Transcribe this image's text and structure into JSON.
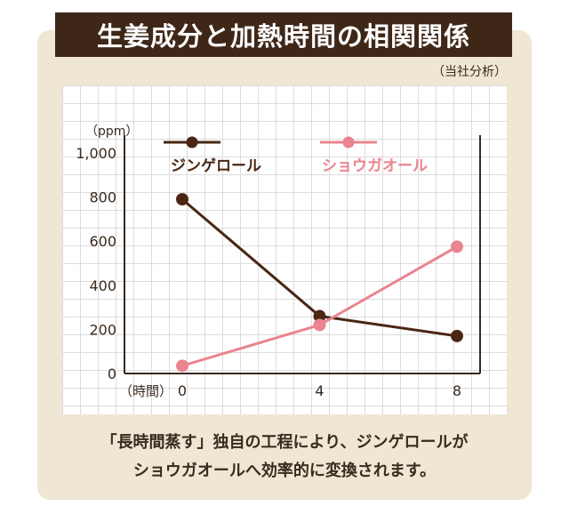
{
  "title": "生姜成分と加熱時間の相関関係",
  "source": "（当社分析）",
  "caption": {
    "line1": "「長時間蒸す」独自の工程により、ジンゲロールが",
    "line2": "ショウガオールへ効率的に変換されます。"
  },
  "colors": {
    "title_bg": "#3f2718",
    "panel_bg": "#efe6d3",
    "gingerol": "#4a2614",
    "shogaol": "#e98490"
  },
  "chart_data": {
    "type": "line",
    "title": "",
    "xlabel": "（時間）",
    "ylabel": "（ppm）",
    "x": [
      0,
      4,
      8
    ],
    "x_tick_labels": [
      "0",
      "4",
      "8"
    ],
    "xlim": [
      0,
      8
    ],
    "ylim": [
      0,
      1000
    ],
    "y_ticks": [
      0,
      200,
      400,
      600,
      800,
      1000
    ],
    "y_tick_labels": [
      "0",
      "200",
      "400",
      "600",
      "800",
      "1,000"
    ],
    "grid": true,
    "legend_position": "top",
    "series": [
      {
        "name": "ジンゲロール",
        "values": [
          790,
          260,
          170
        ],
        "color": "#4a2614"
      },
      {
        "name": "ショウガオール",
        "values": [
          35,
          220,
          575
        ],
        "color": "#e98490"
      }
    ]
  }
}
